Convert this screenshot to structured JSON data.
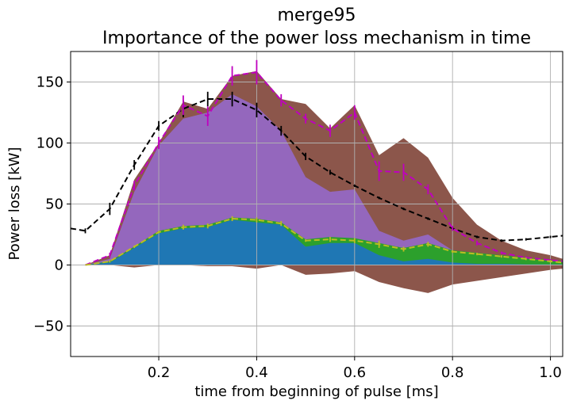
{
  "chart_data": {
    "type": "area",
    "title": "merge95",
    "subtitle": "Importance of the power loss mechanism in time",
    "xlabel": "time from beginning of pulse [ms]",
    "ylabel": "Power loss [kW]",
    "xlim": [
      0.02,
      1.025
    ],
    "ylim": [
      -75,
      175
    ],
    "grid": true,
    "xticks": [
      0.2,
      0.4,
      0.6,
      0.8,
      1.0
    ],
    "xtick_labels": [
      "0.2",
      "0.4",
      "0.6",
      "0.8",
      "1.0"
    ],
    "yticks": [
      -50,
      0,
      50,
      100,
      150
    ],
    "ytick_labels": [
      "−50",
      "0",
      "50",
      "100",
      "150"
    ],
    "x": [
      0.05,
      0.1,
      0.15,
      0.2,
      0.25,
      0.3,
      0.35,
      0.4,
      0.45,
      0.5,
      0.55,
      0.6,
      0.65,
      0.7,
      0.75,
      0.8,
      0.85,
      0.9,
      0.95,
      1.0,
      1.025
    ],
    "stack_series": [
      {
        "color": "#1f77b4",
        "values": [
          0,
          2,
          14,
          26,
          30,
          31,
          37,
          35,
          33,
          15,
          18,
          18,
          8,
          3,
          5,
          2,
          1,
          1,
          0.5,
          0.5,
          0.5
        ]
      },
      {
        "color": "#2ca02c",
        "values": [
          0,
          3,
          15,
          28,
          32,
          33,
          39,
          38,
          35,
          21,
          23,
          22,
          18,
          14,
          18,
          12,
          10,
          8,
          6,
          4,
          3
        ]
      },
      {
        "color": "#9467bd",
        "values": [
          0,
          5,
          60,
          98,
          120,
          125,
          140,
          130,
          110,
          72,
          60,
          62,
          28,
          20,
          25,
          12,
          7,
          5,
          4,
          2,
          1
        ]
      },
      {
        "color": "#8c564b",
        "values": [
          0,
          8,
          70,
          100,
          134,
          128,
          155,
          159,
          136,
          132,
          112,
          131,
          90,
          104,
          88,
          55,
          33,
          20,
          12,
          8,
          5
        ]
      }
    ],
    "negative_band": {
      "color": "#8c564b",
      "values": [
        0,
        0,
        -2,
        0,
        0,
        -1,
        -1,
        -3,
        0,
        -8,
        -7,
        -5,
        -14,
        -19,
        -23,
        -16,
        -13,
        -10,
        -7,
        -4,
        -3
      ]
    },
    "line_series": [
      {
        "color": "#000000",
        "style": "dashed",
        "x": [
          0.02,
          0.05,
          0.1,
          0.15,
          0.2,
          0.25,
          0.3,
          0.35,
          0.4,
          0.45,
          0.5,
          0.55,
          0.6,
          0.65,
          0.7,
          0.75,
          0.8,
          0.85,
          0.9,
          0.95,
          1.0,
          1.025
        ],
        "values": [
          30,
          28,
          46,
          82,
          114,
          128,
          136,
          136,
          127,
          110,
          89,
          76,
          65,
          55,
          46,
          38,
          30,
          23,
          20,
          21,
          23,
          24
        ],
        "errors": [
          0,
          2,
          5,
          4,
          4,
          7,
          6,
          6,
          6,
          4,
          3,
          2,
          1,
          1,
          1,
          1,
          1,
          1,
          1,
          1,
          1,
          0
        ]
      },
      {
        "color": "#bf00bf",
        "style": "dashed",
        "x": [
          0.05,
          0.1,
          0.15,
          0.2,
          0.25,
          0.3,
          0.35,
          0.4,
          0.45,
          0.5,
          0.55,
          0.6,
          0.65,
          0.7,
          0.75,
          0.8,
          0.85,
          0.9,
          0.95,
          1.0,
          1.025
        ],
        "values": [
          0,
          8,
          65,
          100,
          131,
          122,
          155,
          158,
          135,
          120,
          110,
          125,
          77,
          76,
          62,
          30,
          18,
          10,
          6,
          4,
          3
        ],
        "errors": [
          0,
          2,
          4,
          5,
          8,
          8,
          8,
          10,
          5,
          4,
          5,
          6,
          8,
          7,
          4,
          2,
          2,
          1,
          1,
          1,
          0
        ]
      },
      {
        "color": "#bcbd22",
        "style": "dashed",
        "x": [
          0.05,
          0.1,
          0.15,
          0.2,
          0.25,
          0.3,
          0.35,
          0.4,
          0.45,
          0.5,
          0.55,
          0.6,
          0.65,
          0.7,
          0.75,
          0.8,
          0.85,
          0.9,
          0.95,
          1.0,
          1.025
        ],
        "values": [
          0,
          3,
          15,
          27,
          31,
          32,
          38,
          37,
          34,
          20,
          21,
          20,
          17,
          13,
          17,
          11,
          9,
          7,
          5,
          3,
          2
        ],
        "errors": [
          0,
          1,
          1,
          1,
          2,
          2,
          2,
          2,
          2,
          1,
          2,
          2,
          3,
          2,
          2,
          1,
          1,
          1,
          1,
          1,
          0
        ]
      }
    ]
  }
}
